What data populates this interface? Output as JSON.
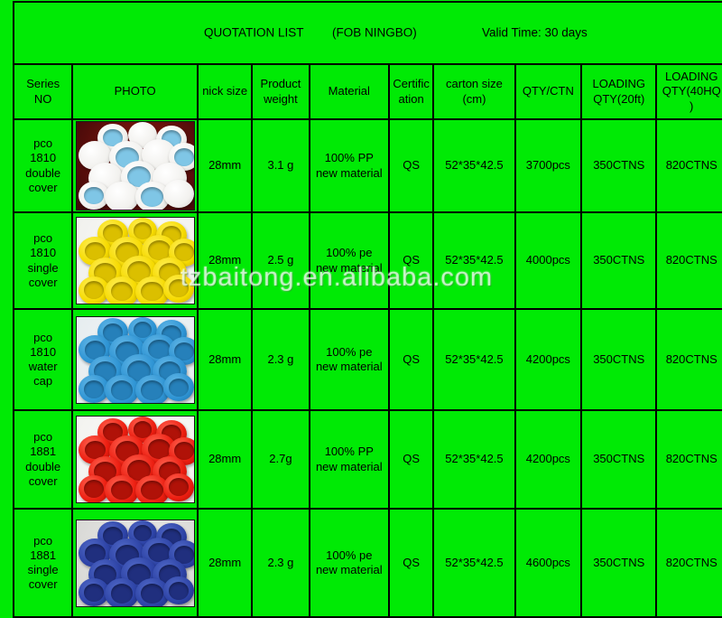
{
  "title_bar": {
    "quotation": "QUOTATION LIST",
    "fob": "(FOB NINGBO)",
    "valid": "Valid Time: 30 days"
  },
  "columns": [
    {
      "label": "Series\nNO"
    },
    {
      "label": "PHOTO"
    },
    {
      "label": "nick size"
    },
    {
      "label": "Product\nweight"
    },
    {
      "label": "Material"
    },
    {
      "label": "Certific\nation"
    },
    {
      "label": "carton size\n(cm)"
    },
    {
      "label": "QTY/CTN"
    },
    {
      "label": "LOADING\nQTY(20ft)"
    },
    {
      "label": "LOADING\nQTY(40HQ\n)"
    }
  ],
  "rows": [
    {
      "series": "pco\n1810\ndouble\ncover",
      "photo": {
        "desc": "white double caps with light blue liners on dark red background",
        "bg": "#3f0708",
        "bg2": "#8a1a10",
        "cap": "#f2f1ee",
        "cap_light": "#ffffff",
        "cap_dark": "#cfcecb",
        "inner": "#7fc6e6",
        "inner_pattern": "alternate"
      },
      "nick_size": "28mm",
      "weight": "3.1 g",
      "material": "100% PP\nnew material",
      "cert": "QS",
      "carton": "52*35*42.5",
      "qty_ctn": "3700pcs",
      "loading_20": "350CTNS",
      "loading_40": "820CTNS"
    },
    {
      "series": "pco\n1810\nsingle\ncover",
      "photo": {
        "desc": "yellow single caps on white background",
        "bg": "#efefec",
        "bg2": "#fbfbf8",
        "cap": "#f6da00",
        "cap_light": "#ffee55",
        "cap_dark": "#c7a800",
        "inner": "#dbbf00",
        "inner_pattern": "all"
      },
      "nick_size": "28mm",
      "weight": "2.5 g",
      "material": "100% pe\nnew material",
      "cert": "QS",
      "carton": "52*35*42.5",
      "qty_ctn": "4000pcs",
      "loading_20": "350CTNS",
      "loading_40": "820CTNS"
    },
    {
      "series": "pco\n1810\nwater\ncap",
      "photo": {
        "desc": "blue water caps on pale blue background",
        "bg": "#e4ebee",
        "bg2": "#f3f7f8",
        "cap": "#2e94d4",
        "cap_light": "#62b6e6",
        "cap_dark": "#1e6ea6",
        "inner": "#2680ba",
        "inner_pattern": "all"
      },
      "nick_size": "28mm",
      "weight": "2.3 g",
      "material": "100% pe\nnew material",
      "cert": "QS",
      "carton": "52*35*42.5",
      "qty_ctn": "4200pcs",
      "loading_20": "350CTNS",
      "loading_40": "820CTNS"
    },
    {
      "series": "pco\n1881\ndouble\ncover",
      "photo": {
        "desc": "red double caps on white background",
        "bg": "#f1f1ee",
        "bg2": "#fcfcf9",
        "cap": "#ec1d10",
        "cap_light": "#ff6250",
        "cap_dark": "#a81008",
        "inner": "#b01208",
        "inner_pattern": "all"
      },
      "nick_size": "28mm",
      "weight": "2.7g",
      "material": "100% PP\nnew material",
      "cert": "QS",
      "carton": "52*35*42.5",
      "qty_ctn": "4200pcs",
      "loading_20": "350CTNS",
      "loading_40": "820CTNS"
    },
    {
      "series": "pco\n1881\nsingle\ncover",
      "photo": {
        "desc": "dark blue single caps on grey background",
        "bg": "#d5d5d2",
        "bg2": "#ececea",
        "cap": "#2d43a6",
        "cap_light": "#5068c6",
        "cap_dark": "#1a2a74",
        "inner": "#202f7e",
        "inner_pattern": "all"
      },
      "nick_size": "28mm",
      "weight": "2.3 g",
      "material": "100% pe\nnew material",
      "cert": "QS",
      "carton": "52*35*42.5",
      "qty_ctn": "4600pcs",
      "loading_20": "350CTNS",
      "loading_40": "820CTNS"
    }
  ],
  "watermark": "tzbaitong.en.alibaba.com",
  "colors": {
    "background": "#00ea05",
    "grid": "#000000",
    "text": "#000000"
  }
}
